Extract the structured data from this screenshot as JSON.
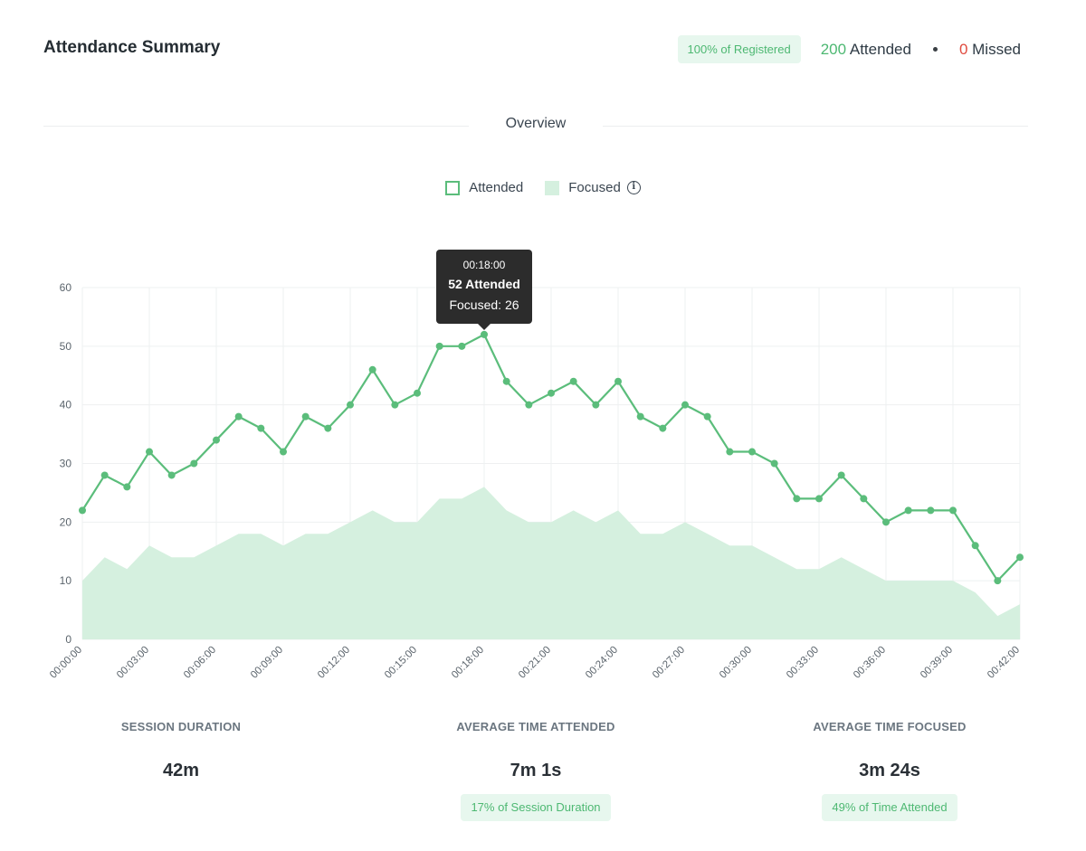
{
  "header": {
    "title": "Attendance Summary",
    "registered_pill": "100% of Registered",
    "attended_count": "200",
    "attended_label": "Attended",
    "missed_count": "0",
    "missed_label": "Missed"
  },
  "overview": {
    "label": "Overview"
  },
  "legend": {
    "attended": "Attended",
    "focused": "Focused",
    "info_icon": "info-icon"
  },
  "tooltip": {
    "time": "00:18:00",
    "attended": "52 Attended",
    "focused": "Focused: 26",
    "index": 18
  },
  "stats": {
    "session_duration": {
      "label": "SESSION DURATION",
      "value": "42m"
    },
    "avg_attended": {
      "label": "AVERAGE TIME ATTENDED",
      "value": "7m 1s",
      "pill": "17% of Session Duration"
    },
    "avg_focused": {
      "label": "AVERAGE TIME FOCUSED",
      "value": "3m 24s",
      "pill": "49% of Time Attended"
    }
  },
  "colors": {
    "attended": "#5bbd7b",
    "focused": "#d5f0df",
    "missed": "#e04b3f"
  },
  "chart_data": {
    "type": "line",
    "x_unit_minutes": [
      0,
      1,
      2,
      3,
      4,
      5,
      6,
      7,
      8,
      9,
      10,
      11,
      12,
      13,
      14,
      15,
      16,
      17,
      18,
      19,
      20,
      21,
      22,
      23,
      24,
      25,
      26,
      27,
      28,
      29,
      30,
      31,
      32,
      33,
      34,
      35,
      36,
      37,
      38,
      39,
      40,
      41,
      42
    ],
    "x_tick_labels": [
      "00:00:00",
      "00:03:00",
      "00:06:00",
      "00:09:00",
      "00:12:00",
      "00:15:00",
      "00:18:00",
      "00:21:00",
      "00:24:00",
      "00:27:00",
      "00:30:00",
      "00:33:00",
      "00:36:00",
      "00:39:00",
      "00:42:00"
    ],
    "y_ticks": [
      0,
      10,
      20,
      30,
      40,
      50,
      60
    ],
    "ylim": [
      0,
      60
    ],
    "grid": true,
    "legend_position": "top-center",
    "series": [
      {
        "name": "Attended",
        "kind": "line",
        "values": [
          22,
          28,
          26,
          32,
          28,
          30,
          34,
          38,
          36,
          32,
          38,
          36,
          40,
          46,
          40,
          42,
          50,
          50,
          52,
          44,
          40,
          42,
          44,
          40,
          44,
          38,
          36,
          40,
          38,
          32,
          32,
          30,
          24,
          24,
          28,
          24,
          20,
          22,
          22,
          22,
          16,
          10,
          14
        ]
      },
      {
        "name": "Focused",
        "kind": "area",
        "values": [
          10,
          14,
          12,
          16,
          14,
          14,
          16,
          18,
          18,
          16,
          18,
          18,
          20,
          22,
          20,
          20,
          24,
          24,
          26,
          22,
          20,
          20,
          22,
          20,
          22,
          18,
          18,
          20,
          18,
          16,
          16,
          14,
          12,
          12,
          14,
          12,
          10,
          10,
          10,
          10,
          8,
          4,
          6
        ]
      }
    ]
  }
}
